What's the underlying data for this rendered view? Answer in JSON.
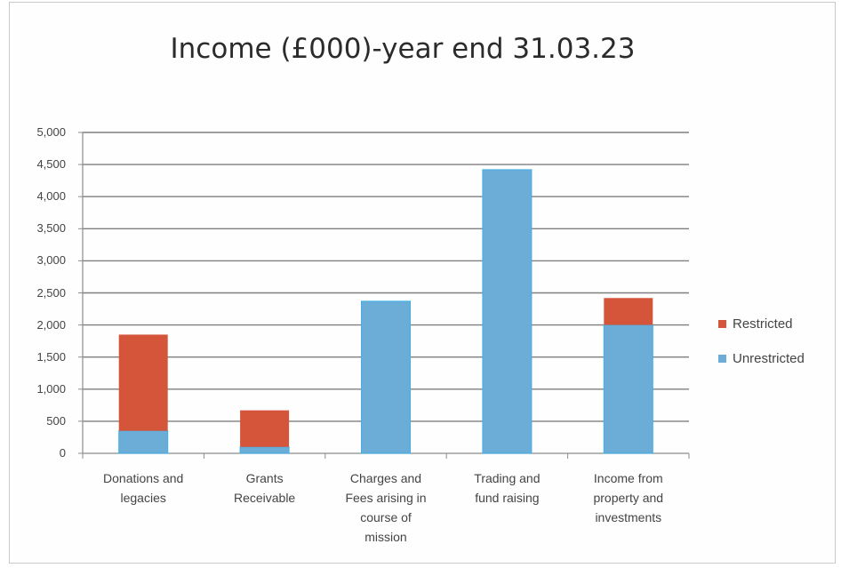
{
  "colors": {
    "restricted": "#d4553a",
    "unrestricted": "#6cadd8",
    "unrestricted_edge": "#3fb0e8",
    "gridline": "#7f7f7f",
    "axis": "#8c8c8c"
  },
  "chart_data": {
    "type": "bar",
    "stacked": true,
    "title": "Income (£000)-year end 31.03.23",
    "xlabel": "",
    "ylabel": "",
    "ylim": [
      0,
      5000
    ],
    "grid": true,
    "legend_position": "right",
    "categories": [
      [
        "Donations and",
        "legacies"
      ],
      [
        "Grants",
        "Receivable"
      ],
      [
        "Charges and",
        "Fees arising in",
        "course of",
        "mission"
      ],
      [
        "Trading and",
        "fund raising"
      ],
      [
        "Income from",
        "property and",
        "investments"
      ]
    ],
    "y_ticks": [
      "0",
      "500",
      "1,000",
      "1,500",
      "2,000",
      "2,500",
      "3,000",
      "3,500",
      "4,000",
      "4,500",
      "5,000"
    ],
    "y_tick_values": [
      0,
      500,
      1000,
      1500,
      2000,
      2500,
      3000,
      3500,
      4000,
      4500,
      5000
    ],
    "series": [
      {
        "name": "Unrestricted",
        "values": [
          350,
          100,
          2370,
          4420,
          2000
        ]
      },
      {
        "name": "Restricted",
        "values": [
          1500,
          570,
          0,
          0,
          420
        ]
      }
    ],
    "legend": [
      "Restricted",
      "Unrestricted"
    ]
  }
}
